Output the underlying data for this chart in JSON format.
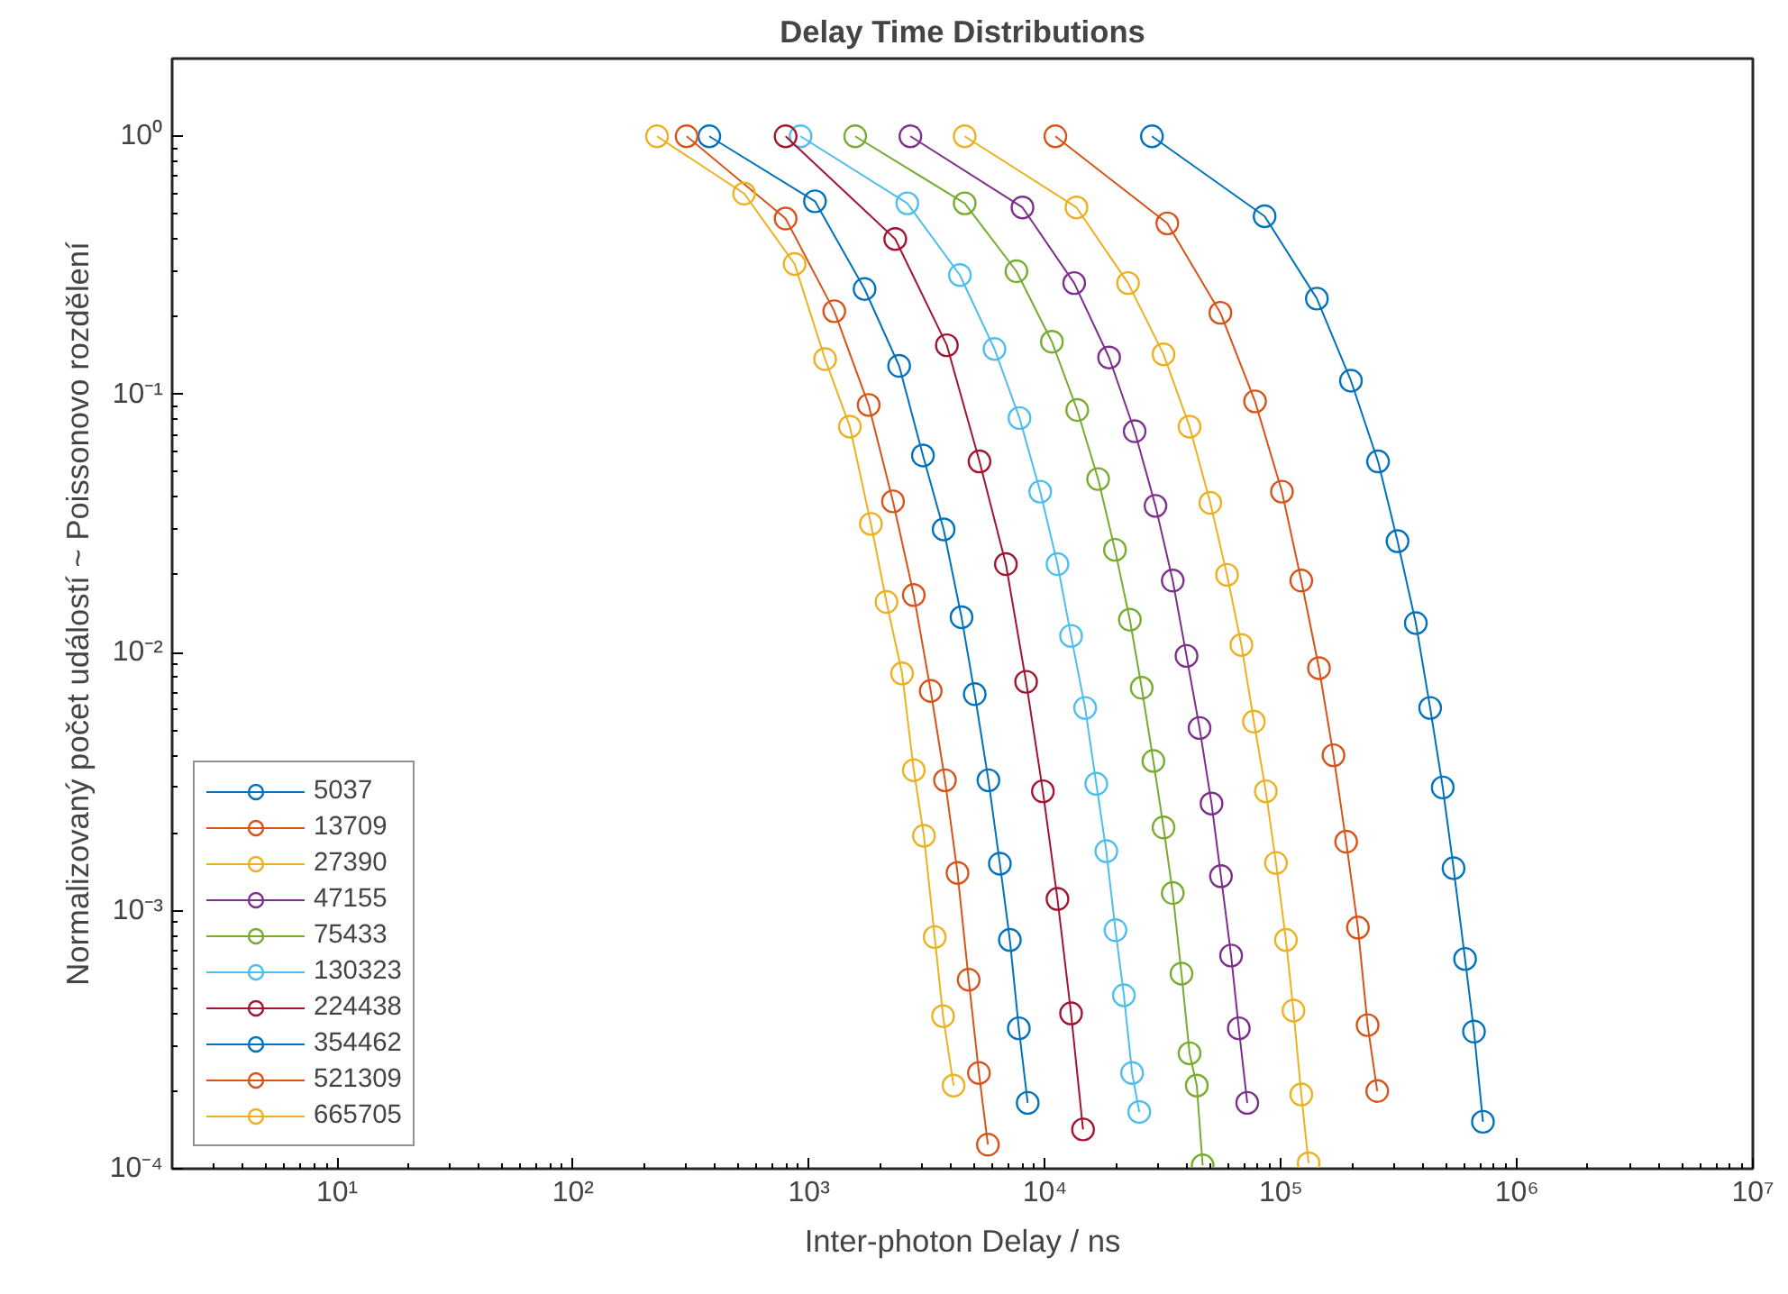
{
  "chart_data": {
    "type": "line",
    "title": "Delay Time Distributions",
    "xlabel": "Inter-photon Delay / ns",
    "ylabel": "Normalizovaný počet událostí ~ Poissonovo rozdělení",
    "log": "xy",
    "grid": false,
    "legend": "bottom left",
    "marker": "circle",
    "line_style": "solid",
    "xlim": [
      2,
      10000000
    ],
    "ylim": [
      0.0001,
      2
    ],
    "xticks": [
      {
        "value": 10,
        "label": "10¹"
      },
      {
        "value": 100,
        "label": "10²"
      },
      {
        "value": 1000,
        "label": "10³"
      },
      {
        "value": 10000,
        "label": "10⁴"
      },
      {
        "value": 100000,
        "label": "10⁵"
      },
      {
        "value": 1000000,
        "label": "10⁶"
      },
      {
        "value": 10000000,
        "label": "10⁷"
      }
    ],
    "yticks": [
      {
        "value": 0.0001,
        "label": "10⁻⁴"
      },
      {
        "value": 0.001,
        "label": "10⁻³"
      },
      {
        "value": 0.01,
        "label": "10⁻²"
      },
      {
        "value": 0.1,
        "label": "10⁻¹"
      },
      {
        "value": 1,
        "label": "10⁰"
      }
    ],
    "series": [
      {
        "name": "5037",
        "color": "#0072bd",
        "x": [
          28400,
          85300,
          142000,
          198000,
          258000,
          312000,
          373000,
          429000,
          485000,
          539000,
          603000,
          658000,
          718000
        ],
        "values": [
          1,
          0.49,
          0.235,
          0.113,
          0.055,
          0.027,
          0.013,
          0.0061,
          0.003,
          0.00146,
          0.00065,
          0.00034,
          0.000152
        ]
      },
      {
        "name": "13709",
        "color": "#d95319",
        "x": [
          11070,
          33000,
          55400,
          77700,
          101000,
          122000,
          145000,
          167000,
          189000,
          212000,
          233000,
          256000
        ],
        "values": [
          1,
          0.46,
          0.207,
          0.094,
          0.042,
          0.019,
          0.0087,
          0.004,
          0.00185,
          0.00086,
          0.00036,
          0.0002
        ]
      },
      {
        "name": "27390",
        "color": "#edb120",
        "x": [
          4570,
          13600,
          22500,
          31800,
          41000,
          50200,
          59100,
          68000,
          76800,
          86300,
          95300,
          105000,
          113000,
          122000,
          131000
        ],
        "values": [
          1,
          0.53,
          0.27,
          0.143,
          0.075,
          0.038,
          0.02,
          0.0107,
          0.0054,
          0.0029,
          0.00153,
          0.00077,
          0.00041,
          0.000194,
          0.000105
        ]
      },
      {
        "name": "47155",
        "color": "#7e2f8e",
        "x": [
          2690,
          8030,
          13300,
          18700,
          24000,
          29400,
          34800,
          39800,
          45200,
          50800,
          55700,
          61500,
          66300,
          72000
        ],
        "values": [
          1,
          0.53,
          0.27,
          0.139,
          0.072,
          0.037,
          0.019,
          0.0097,
          0.0051,
          0.0026,
          0.00136,
          0.00067,
          0.00035,
          0.00018
        ]
      },
      {
        "name": "75433",
        "color": "#77ac30",
        "x": [
          1570,
          4570,
          7570,
          10700,
          13700,
          16800,
          19800,
          22900,
          25700,
          28800,
          31800,
          34800,
          37900,
          41000,
          44000,
          46600
        ],
        "values": [
          1,
          0.55,
          0.3,
          0.16,
          0.087,
          0.047,
          0.025,
          0.0134,
          0.0073,
          0.0038,
          0.0021,
          0.00117,
          0.00057,
          0.00028,
          0.00021,
          0.000103
        ]
      },
      {
        "name": "130323",
        "color": "#4dbeee",
        "x": [
          921,
          2610,
          4360,
          6110,
          7800,
          9550,
          11300,
          12900,
          14800,
          16500,
          18200,
          19900,
          21600,
          23400,
          25100
        ],
        "values": [
          1,
          0.55,
          0.29,
          0.15,
          0.081,
          0.042,
          0.022,
          0.0116,
          0.0061,
          0.0031,
          0.0017,
          0.00084,
          0.00047,
          0.000235,
          0.000166
        ]
      },
      {
        "name": "224438",
        "color": "#a2142f",
        "x": [
          796,
          2320,
          3840,
          5280,
          6830,
          8320,
          9800,
          11300,
          12900,
          14500
        ],
        "values": [
          1,
          0.4,
          0.155,
          0.055,
          0.022,
          0.0077,
          0.0029,
          0.00111,
          0.0004,
          0.000142
        ]
      },
      {
        "name": "354462",
        "color": "#0072bd",
        "x": [
          378,
          1060,
          1720,
          2410,
          3040,
          3720,
          4430,
          5040,
          5760,
          6440,
          7100,
          7750,
          8450
        ],
        "values": [
          1,
          0.56,
          0.256,
          0.129,
          0.058,
          0.03,
          0.0137,
          0.0069,
          0.0032,
          0.00152,
          0.00077,
          0.00035,
          0.00018
        ]
      },
      {
        "name": "521309",
        "color": "#d95319",
        "x": [
          303,
          796,
          1280,
          1790,
          2270,
          2780,
          3280,
          3770,
          4260,
          4750,
          5250,
          5730
        ],
        "values": [
          1,
          0.48,
          0.21,
          0.091,
          0.0385,
          0.0167,
          0.0071,
          0.0032,
          0.0014,
          0.00054,
          0.000235,
          0.000124
        ]
      },
      {
        "name": "665705",
        "color": "#edb120",
        "x": [
          227,
          531,
          869,
          1170,
          1490,
          1830,
          2130,
          2480,
          2780,
          3070,
          3410,
          3700,
          4100
        ],
        "values": [
          1,
          0.6,
          0.32,
          0.137,
          0.075,
          0.0315,
          0.0157,
          0.0083,
          0.0035,
          0.00195,
          0.00079,
          0.00039,
          0.00021
        ]
      }
    ]
  }
}
